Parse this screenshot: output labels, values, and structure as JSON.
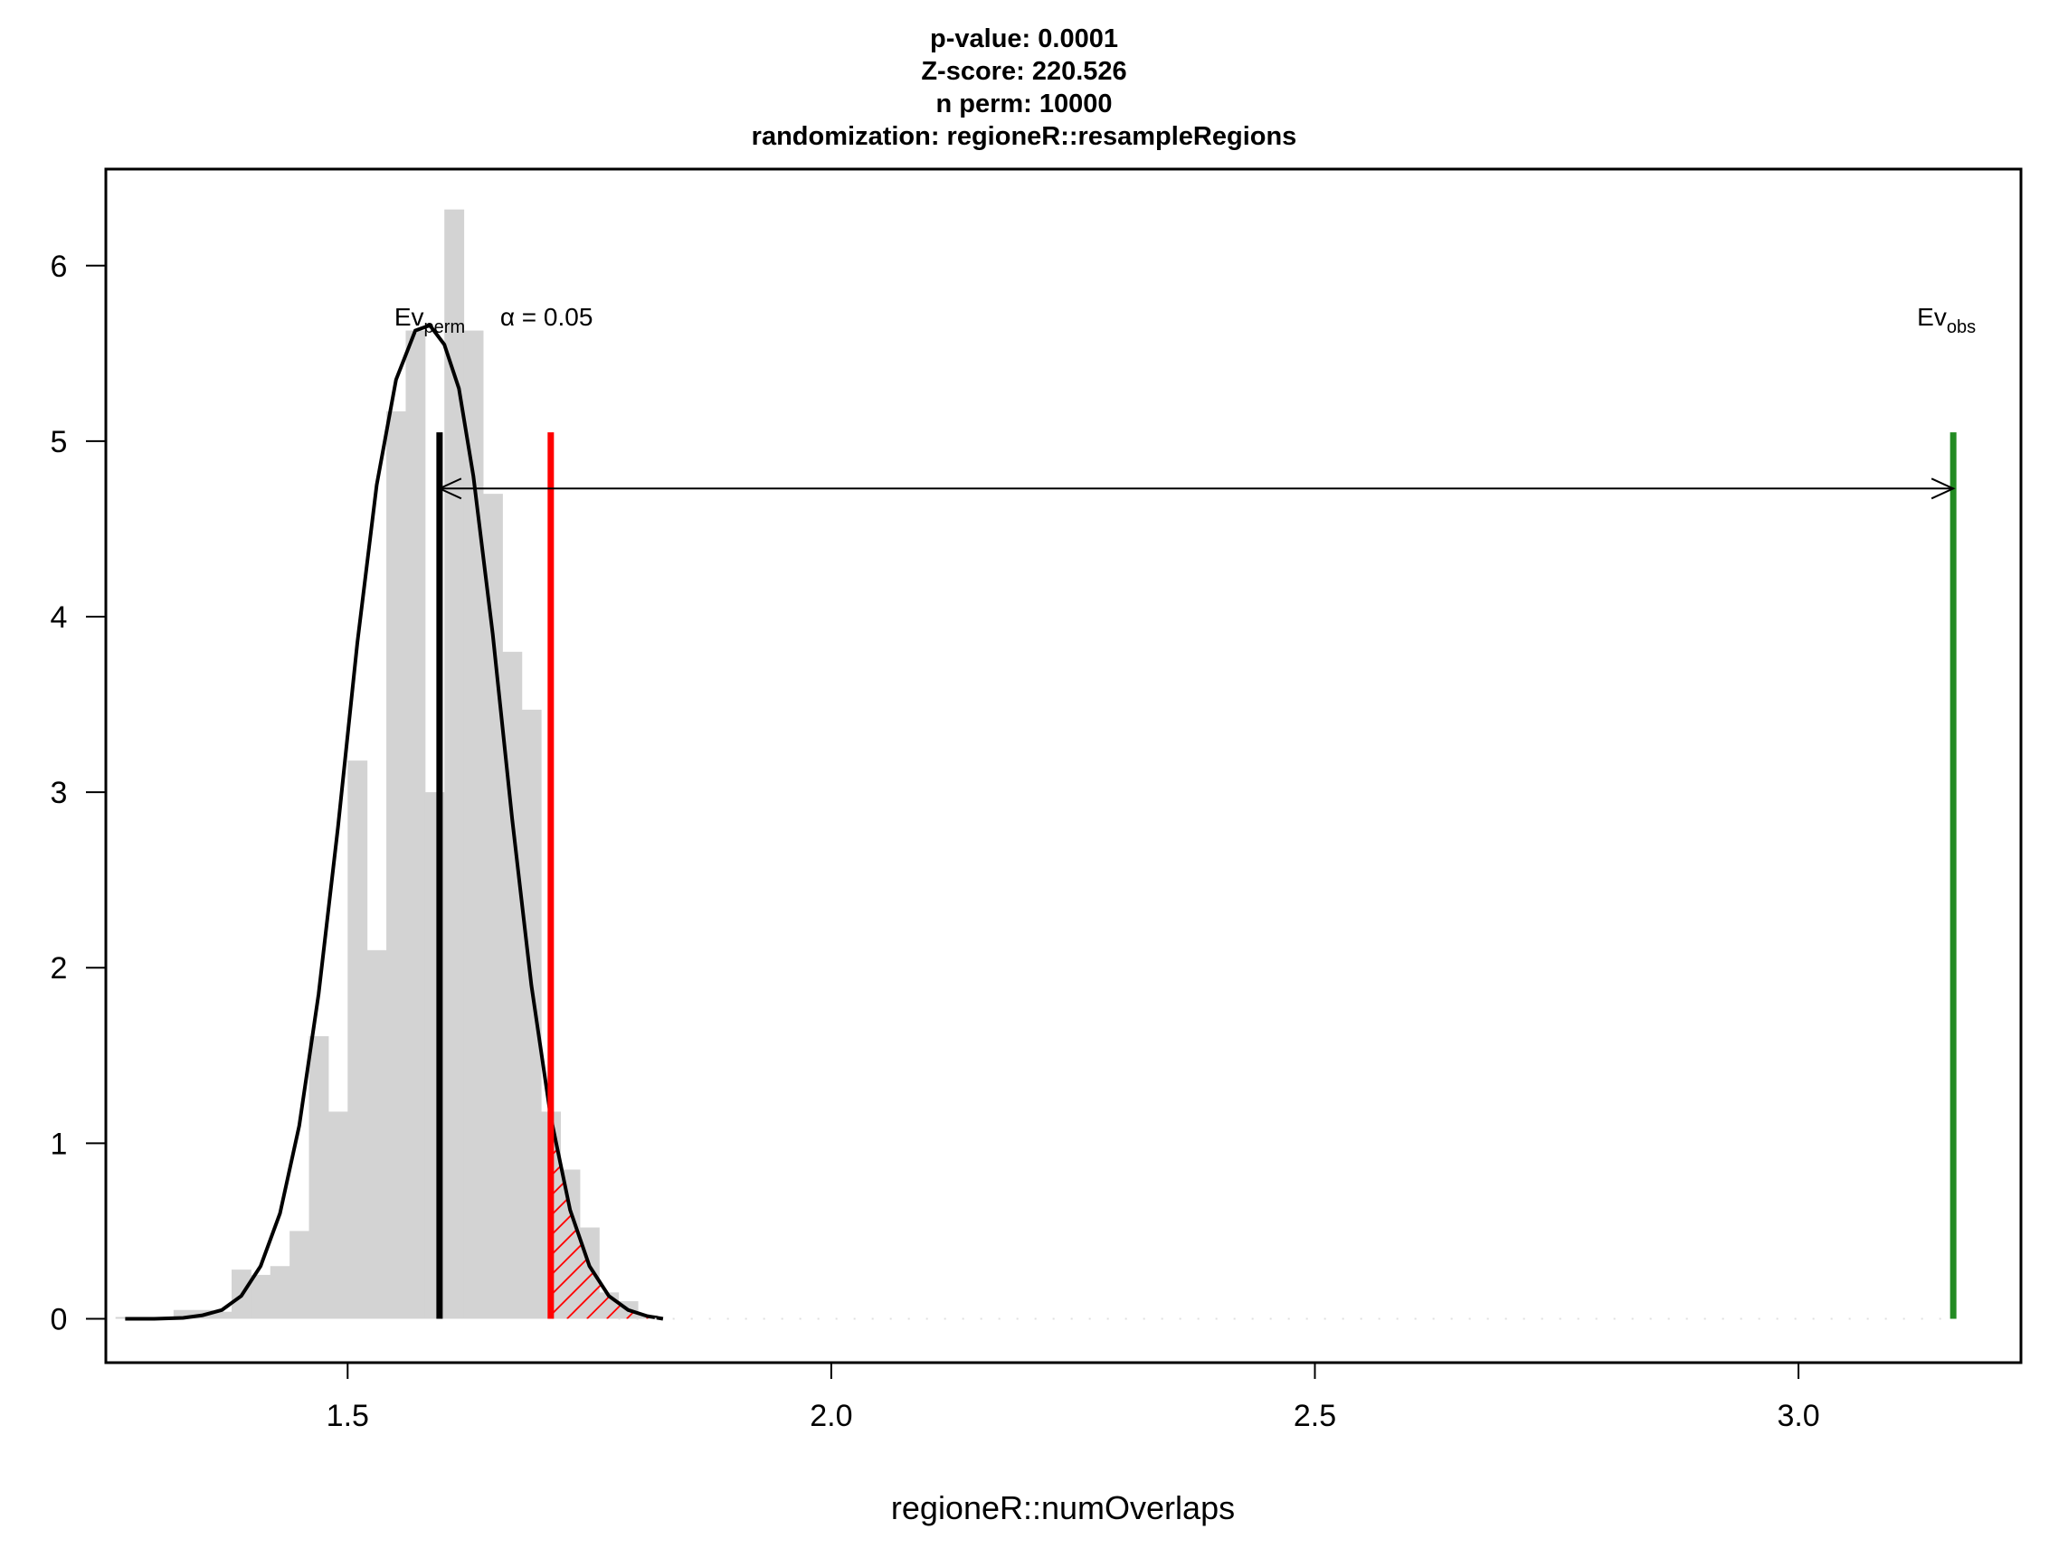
{
  "title_lines": [
    "p-value:  0.0001",
    "Z-score:  220.526",
    "n perm:  10000",
    "randomization:  regioneR::resampleRegions"
  ],
  "chart_data": {
    "type": "bar",
    "xlabel": "regioneR::numOverlaps",
    "ylabel": "",
    "xlim": [
      1.25,
      3.23
    ],
    "ylim": [
      -0.25,
      6.55
    ],
    "x_ticks": [
      1.5,
      2.0,
      2.5,
      3.0
    ],
    "x_tick_labels": [
      "1.5",
      "2.0",
      "2.5",
      "3.0"
    ],
    "y_ticks": [
      0,
      1,
      2,
      3,
      4,
      5,
      6
    ],
    "y_tick_labels": [
      "0",
      "1",
      "2",
      "3",
      "4",
      "5",
      "6"
    ],
    "grid": false,
    "histogram": {
      "bin_width": 0.02,
      "bins": [
        {
          "x0": 1.26,
          "value": 0.01
        },
        {
          "x0": 1.28,
          "value": 0.0
        },
        {
          "x0": 1.3,
          "value": 0.0
        },
        {
          "x0": 1.32,
          "value": 0.05
        },
        {
          "x0": 1.34,
          "value": 0.05
        },
        {
          "x0": 1.36,
          "value": 0.04
        },
        {
          "x0": 1.38,
          "value": 0.28
        },
        {
          "x0": 1.4,
          "value": 0.25
        },
        {
          "x0": 1.42,
          "value": 0.3
        },
        {
          "x0": 1.44,
          "value": 0.5
        },
        {
          "x0": 1.46,
          "value": 1.61
        },
        {
          "x0": 1.48,
          "value": 1.18
        },
        {
          "x0": 1.5,
          "value": 3.18
        },
        {
          "x0": 1.52,
          "value": 2.1
        },
        {
          "x0": 1.54,
          "value": 5.17
        },
        {
          "x0": 1.56,
          "value": 5.63
        },
        {
          "x0": 1.58,
          "value": 3.0
        },
        {
          "x0": 1.6,
          "value": 6.32
        },
        {
          "x0": 1.62,
          "value": 5.63
        },
        {
          "x0": 1.64,
          "value": 4.7
        },
        {
          "x0": 1.66,
          "value": 3.8
        },
        {
          "x0": 1.68,
          "value": 3.47
        },
        {
          "x0": 1.7,
          "value": 1.18
        },
        {
          "x0": 1.72,
          "value": 0.85
        },
        {
          "x0": 1.74,
          "value": 0.52
        },
        {
          "x0": 1.76,
          "value": 0.15
        },
        {
          "x0": 1.78,
          "value": 0.1
        },
        {
          "x0": 1.8,
          "value": 0.02
        }
      ],
      "color": "#d3d3d3"
    },
    "density_curve": {
      "x": [
        1.27,
        1.3,
        1.33,
        1.35,
        1.37,
        1.39,
        1.41,
        1.43,
        1.45,
        1.47,
        1.49,
        1.51,
        1.53,
        1.55,
        1.57,
        1.585,
        1.6,
        1.615,
        1.63,
        1.65,
        1.67,
        1.69,
        1.71,
        1.73,
        1.75,
        1.77,
        1.79,
        1.81,
        1.826
      ],
      "y": [
        0.0,
        0.0,
        0.005,
        0.02,
        0.05,
        0.13,
        0.3,
        0.6,
        1.1,
        1.85,
        2.8,
        3.85,
        4.75,
        5.35,
        5.63,
        5.66,
        5.55,
        5.3,
        4.8,
        3.9,
        2.85,
        1.9,
        1.15,
        0.62,
        0.3,
        0.13,
        0.05,
        0.015,
        0.0
      ],
      "color": "#000000"
    },
    "lines": [
      {
        "label_base": "Ev",
        "label_sub": "perm",
        "x": 1.595,
        "y_top": 5.05,
        "color": "#000000"
      },
      {
        "label": "α = 0.05",
        "x": 1.71,
        "y_top": 5.05,
        "color": "#ff0000"
      },
      {
        "label_base": "Ev",
        "label_sub": "obs",
        "x": 3.16,
        "y_top": 5.05,
        "color": "#228b22"
      }
    ],
    "arrow": {
      "x_from": 1.595,
      "x_to": 3.16,
      "y": 4.73
    },
    "hatched_tail": {
      "x_from": 1.71,
      "color": "#ff0000"
    }
  }
}
